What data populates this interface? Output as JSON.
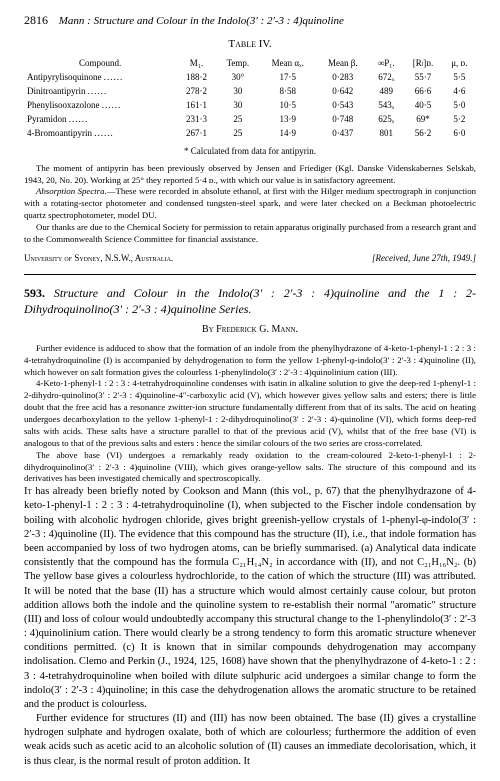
{
  "header": {
    "page_number": "2816",
    "running_title": "Mann : Structure and Colour in the Indolo(3′ : 2′-3 : 4)quinoline"
  },
  "table": {
    "title": "Table IV.",
    "columns": [
      "Compound.",
      "M₁.",
      "Temp.",
      "Mean αₓ.",
      "Mean β.",
      "∞P₁.",
      "[Rₗ]ᴅ.",
      "μ, ᴅ."
    ],
    "rows": [
      [
        "Antipyrylisoquinone",
        "188·2",
        "30°",
        "17·5",
        "0·283",
        "672ₓ",
        "55·7",
        "5·5"
      ],
      [
        "Dinitroantipyrin",
        "278·2",
        "30",
        "8·58",
        "0·642",
        "489",
        "66·6",
        "4·6"
      ],
      [
        "Phenylisooxazolone",
        "161·1",
        "30",
        "10·5",
        "0·543",
        "543ₓ",
        "40·5",
        "5·0"
      ],
      [
        "Pyramidon",
        "231·3",
        "25",
        "13·9",
        "0·748",
        "625ₓ",
        "69*",
        "5·2"
      ],
      [
        "4-Bromoantipyrin",
        "267·1",
        "25",
        "14·9",
        "0·437",
        "801",
        "56·2",
        "6·0"
      ]
    ],
    "footnote": "* Calculated from data for antipyrin."
  },
  "notes": {
    "moment": "The moment of antipyrin has been previously observed by Jensen and Friediger (Kgl. Danske Videnskabernes Selskab, 1943, 20, No. 20). Working at 25° they reported 5·4 ᴅ., with which our value is in satisfactory agreement.",
    "absorption_title": "Absorption Spectra.",
    "absorption": "—These were recorded in absolute ethanol, at first with the Hilger medium spectrograph in conjunction with a rotating-sector photometer and condensed tungsten-steel spark, and were later checked on a Beckman photoelectric quartz spectrophotometer, model DU.",
    "thanks": "Our thanks are due to the Chemical Society for permission to retain apparatus originally purchased from a research grant and to the Commonwealth Science Committee for financial assistance."
  },
  "affiliation": {
    "place": "University of Sydney, N.S.W., Australia.",
    "received": "[Received, June 27th, 1949.]"
  },
  "article": {
    "number": "593.",
    "title": "Structure and Colour in the Indolo(3′ : 2′-3 : 4)quinoline and the 1 : 2-Dihydroquinolino(3′ : 2′-3 : 4)quinoline Series.",
    "author": "By Frederick G. Mann."
  },
  "abstract": {
    "p1": "Further evidence is adduced to show that the formation of an indole from the phenylhydrazone of 4-keto-1-phenyl-1 : 2 : 3 : 4-tetrahydroquinoline (I) is accompanied by dehydrogenation to form the yellow 1-phenyl-φ-indolo(3′ : 2′-3 : 4)quinoline (II), which however on salt formation gives the colourless 1-phenylindolo(3′ : 2′-3 : 4)quinolinium cation (III).",
    "p2": "4-Keto-1-phenyl-1 : 2 : 3 : 4-tetrahydroquinoline condenses with isatin in alkaline solution to give the deep-red 1-phenyl-1 : 2-dihydro-quinolino(3′ : 2′-3 : 4)quinoline-4″-carboxylic acid (V), which however gives yellow salts and esters; there is little doubt that the free acid has a resonance zwitter-ion structure fundamentally different from that of its salts. The acid on heating undergoes decarboxylation to the yellow 1-phenyl-1 : 2-dihydroquinolino(3′ : 2′-3 : 4)-quinoline (VI), which forms deep-red salts with acids. These salts have a structure parallel to that of the previous acid (V), whilst that of the free base (VI) is analogous to that of the previous salts and esters : hence the similar colours of the two series are cross-correlated.",
    "p3": "The above base (VI) undergoes a remarkably ready oxidation to the cream-coloured 2-keto-1-phenyl-1 : 2-dihydroquinolino(3′ : 2′-3 : 4)quinoline (VIII), which gives orange-yellow salts. The structure of this compound and its derivatives has been investigated chemically and spectroscopically."
  },
  "body": {
    "p1a": "It",
    "p1b": " has already been briefly noted by Cookson and Mann (this vol., p. 67) that the phenylhydrazone of 4-keto-1-phenyl-1 : 2 : 3 : 4-tetrahydroquinoline (I), when subjected to the Fischer indole condensation by boiling with alcoholic hydrogen chloride, gives bright greenish-yellow crystals of 1-phenyl-φ-indolo(3′ : 2′-3 : 4)quinoline (II). The evidence that this compound has the structure (II), i.e., that indole formation has been accompanied by loss of two hydrogen atoms, can be briefly summarised. (a) Analytical data indicate consistently that the compound has the formula C₂₁H₁₄N₂ in accordance with (II), and not C₂₁H₁₆N₂. (b) The yellow base gives a colourless hydrochloride, to the cation of which the structure (III) was attributed. It will be noted that the base (II) has a structure which would almost certainly cause colour, but proton addition allows both the indole and the quinoline system to re-establish their normal \"aromatic\" structure (III) and loss of colour would undoubtedly accompany this structural change to the 1-phenylindolo(3′ : 2′-3 : 4)quinolinium cation. There would clearly be a strong tendency to form this aromatic structure whenever conditions permitted. (c) It is known that in similar compounds dehydrogenation may accompany indolisation. Clemo and Perkin (J., 1924, 125, 1608) have shown that the phenylhydrazone of 4-keto-1 : 2 : 3 : 4-tetrahydroquinoline when boiled with dilute sulphuric acid undergoes a similar change to form the indolo(3′ : 2′-3 : 4)quinoline; in this case the dehydrogenation allows the aromatic structure to be retained and the product is colourless.",
    "p2": "Further evidence for structures (II) and (III) has now been obtained. The base (II) gives a crystalline hydrogen sulphate and hydrogen oxalate, both of which are colourless; furthermore the addition of even weak acids such as acetic acid to an alcoholic solution of (II) causes an immediate decolorisation, which, it is thus clear, is the normal result of proton addition. It"
  }
}
